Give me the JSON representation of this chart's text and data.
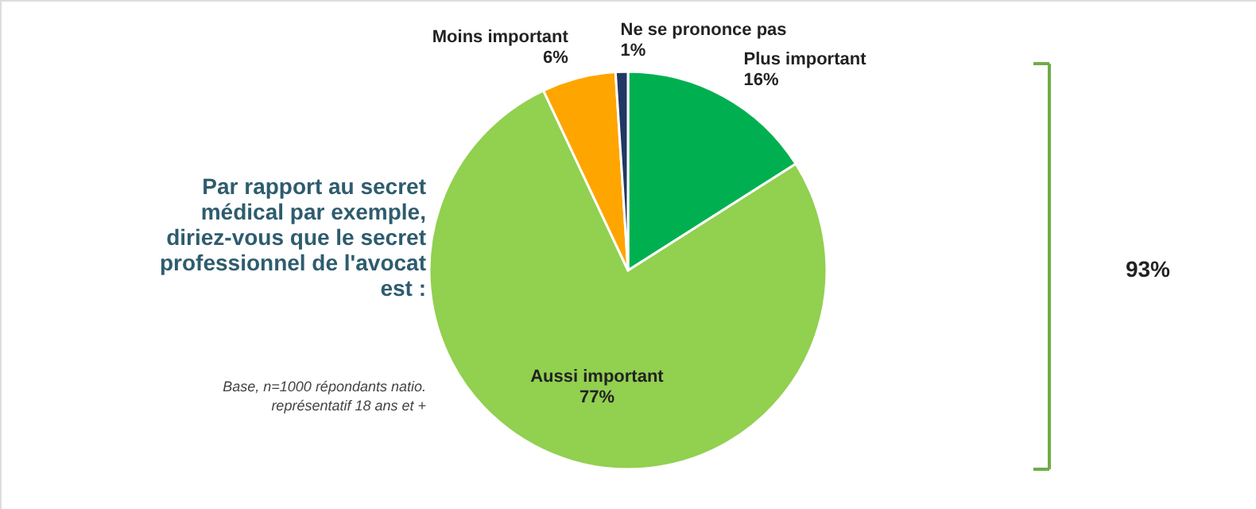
{
  "chart_data": {
    "type": "pie",
    "title": "Par rapport au secret médical par exemple, diriez-vous que le secret professionnel de l'avocat est :",
    "categories": [
      "Plus important",
      "Aussi important",
      "Moins important",
      "Ne se prononce pas"
    ],
    "values": [
      16,
      77,
      6,
      1
    ],
    "value_labels": [
      "16%",
      "77%",
      "6%",
      "1%"
    ],
    "colors": [
      "#00b050",
      "#92d050",
      "#ffa500",
      "#1f3864"
    ],
    "annotations": [
      "93%",
      "Base, n=1000 répondants natio. représentatif 18 ans et +"
    ]
  }
}
